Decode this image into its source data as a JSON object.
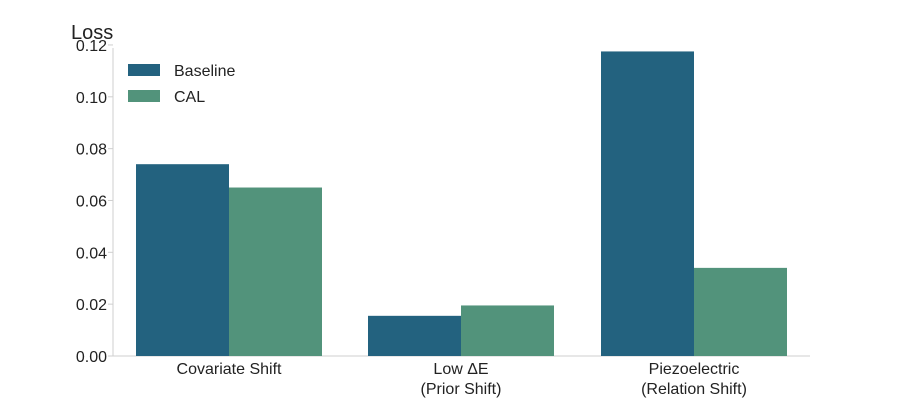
{
  "chart_data": {
    "type": "bar",
    "title": "",
    "xlabel": "",
    "ylabel": "Loss",
    "ylim": [
      0,
      0.125
    ],
    "yticks": [
      "0.00",
      "0.02",
      "0.04",
      "0.06",
      "0.08",
      "0.10",
      "0.12"
    ],
    "categories": [
      [
        "Covariate Shift"
      ],
      [
        "Low ΔE",
        "(Prior Shift)"
      ],
      [
        "Piezoelectric",
        "(Relation Shift)"
      ]
    ],
    "series": [
      {
        "name": "Baseline",
        "color": "#23627f",
        "values": [
          0.074,
          0.0155,
          0.1175
        ]
      },
      {
        "name": "CAL",
        "color": "#52937b",
        "values": [
          0.065,
          0.0195,
          0.034
        ]
      }
    ],
    "grid": false,
    "legend": "top-left"
  }
}
